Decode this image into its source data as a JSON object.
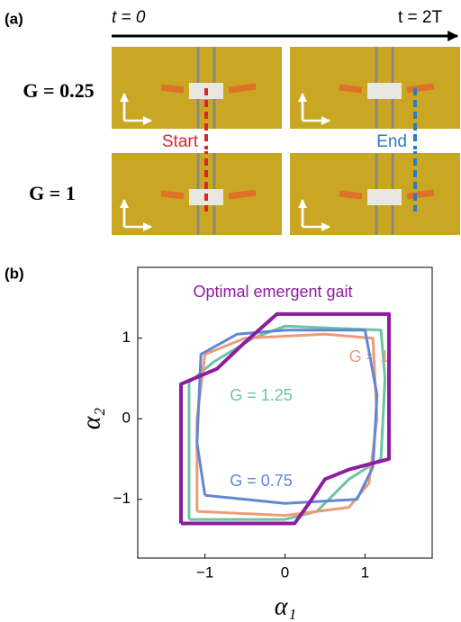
{
  "panel_a": {
    "label": "(a)",
    "time_start": "t = 0",
    "time_end": "t = 2T",
    "rows": [
      "G = 0.25",
      "G = 1"
    ],
    "start": "Start",
    "end": "End"
  },
  "chart_data": {
    "type": "line",
    "panel_label": "(b)",
    "x_label": "α₁",
    "y_label": "α₂",
    "xlim": [
      -1.84,
      1.84
    ],
    "ylim": [
      -1.73,
      1.88
    ],
    "xticks": [
      {
        "value": -1,
        "label": "−1"
      },
      0,
      1
    ],
    "yticks": [
      {
        "value": -1,
        "label": "−1"
      },
      0,
      1
    ],
    "series": [
      {
        "name": "G = 1.25",
        "color": "#6cc4a2",
        "x": [
          -1.2,
          0.0,
          0.4,
          0.8,
          1.2,
          1.25,
          1.2,
          0.0,
          -0.4,
          -0.9,
          -1.2,
          -1.2
        ],
        "values": [
          -1.25,
          -1.25,
          -1.15,
          -0.75,
          -0.5,
          0.5,
          1.1,
          1.15,
          1.0,
          0.7,
          0.45,
          -1.25
        ]
      },
      {
        "name": "G = 1",
        "color": "#ec9c78",
        "x": [
          -1.1,
          0.0,
          0.8,
          1.05,
          1.15,
          1.1,
          0.5,
          -0.5,
          -1.0,
          -1.1,
          -1.1
        ],
        "values": [
          -1.15,
          -1.2,
          -1.1,
          -0.8,
          0,
          1.0,
          1.05,
          1.0,
          0.8,
          0,
          -1.15
        ]
      },
      {
        "name": "G = 0.75",
        "color": "#6287d2",
        "x": [
          -1.0,
          0,
          0.9,
          1.1,
          1.15,
          1.0,
          0,
          -0.6,
          -1.05,
          -1.1,
          -1.0
        ],
        "values": [
          -0.95,
          -1.05,
          -1.0,
          -0.6,
          0.3,
          1.1,
          1.1,
          1.05,
          0.8,
          -0.3,
          -0.95
        ]
      },
      {
        "name": "Optimal emergent gait",
        "color": "#8e1c9e",
        "x": [
          -1.3,
          0.12,
          0.3,
          0.5,
          0.8,
          1.3,
          1.3,
          -0.1,
          -0.5,
          -0.85,
          -1.3,
          -1.3
        ],
        "values": [
          -1.3,
          -1.3,
          -1.05,
          -0.75,
          -0.63,
          -0.5,
          1.3,
          1.3,
          0.95,
          0.62,
          0.43,
          -1.3
        ]
      }
    ]
  }
}
